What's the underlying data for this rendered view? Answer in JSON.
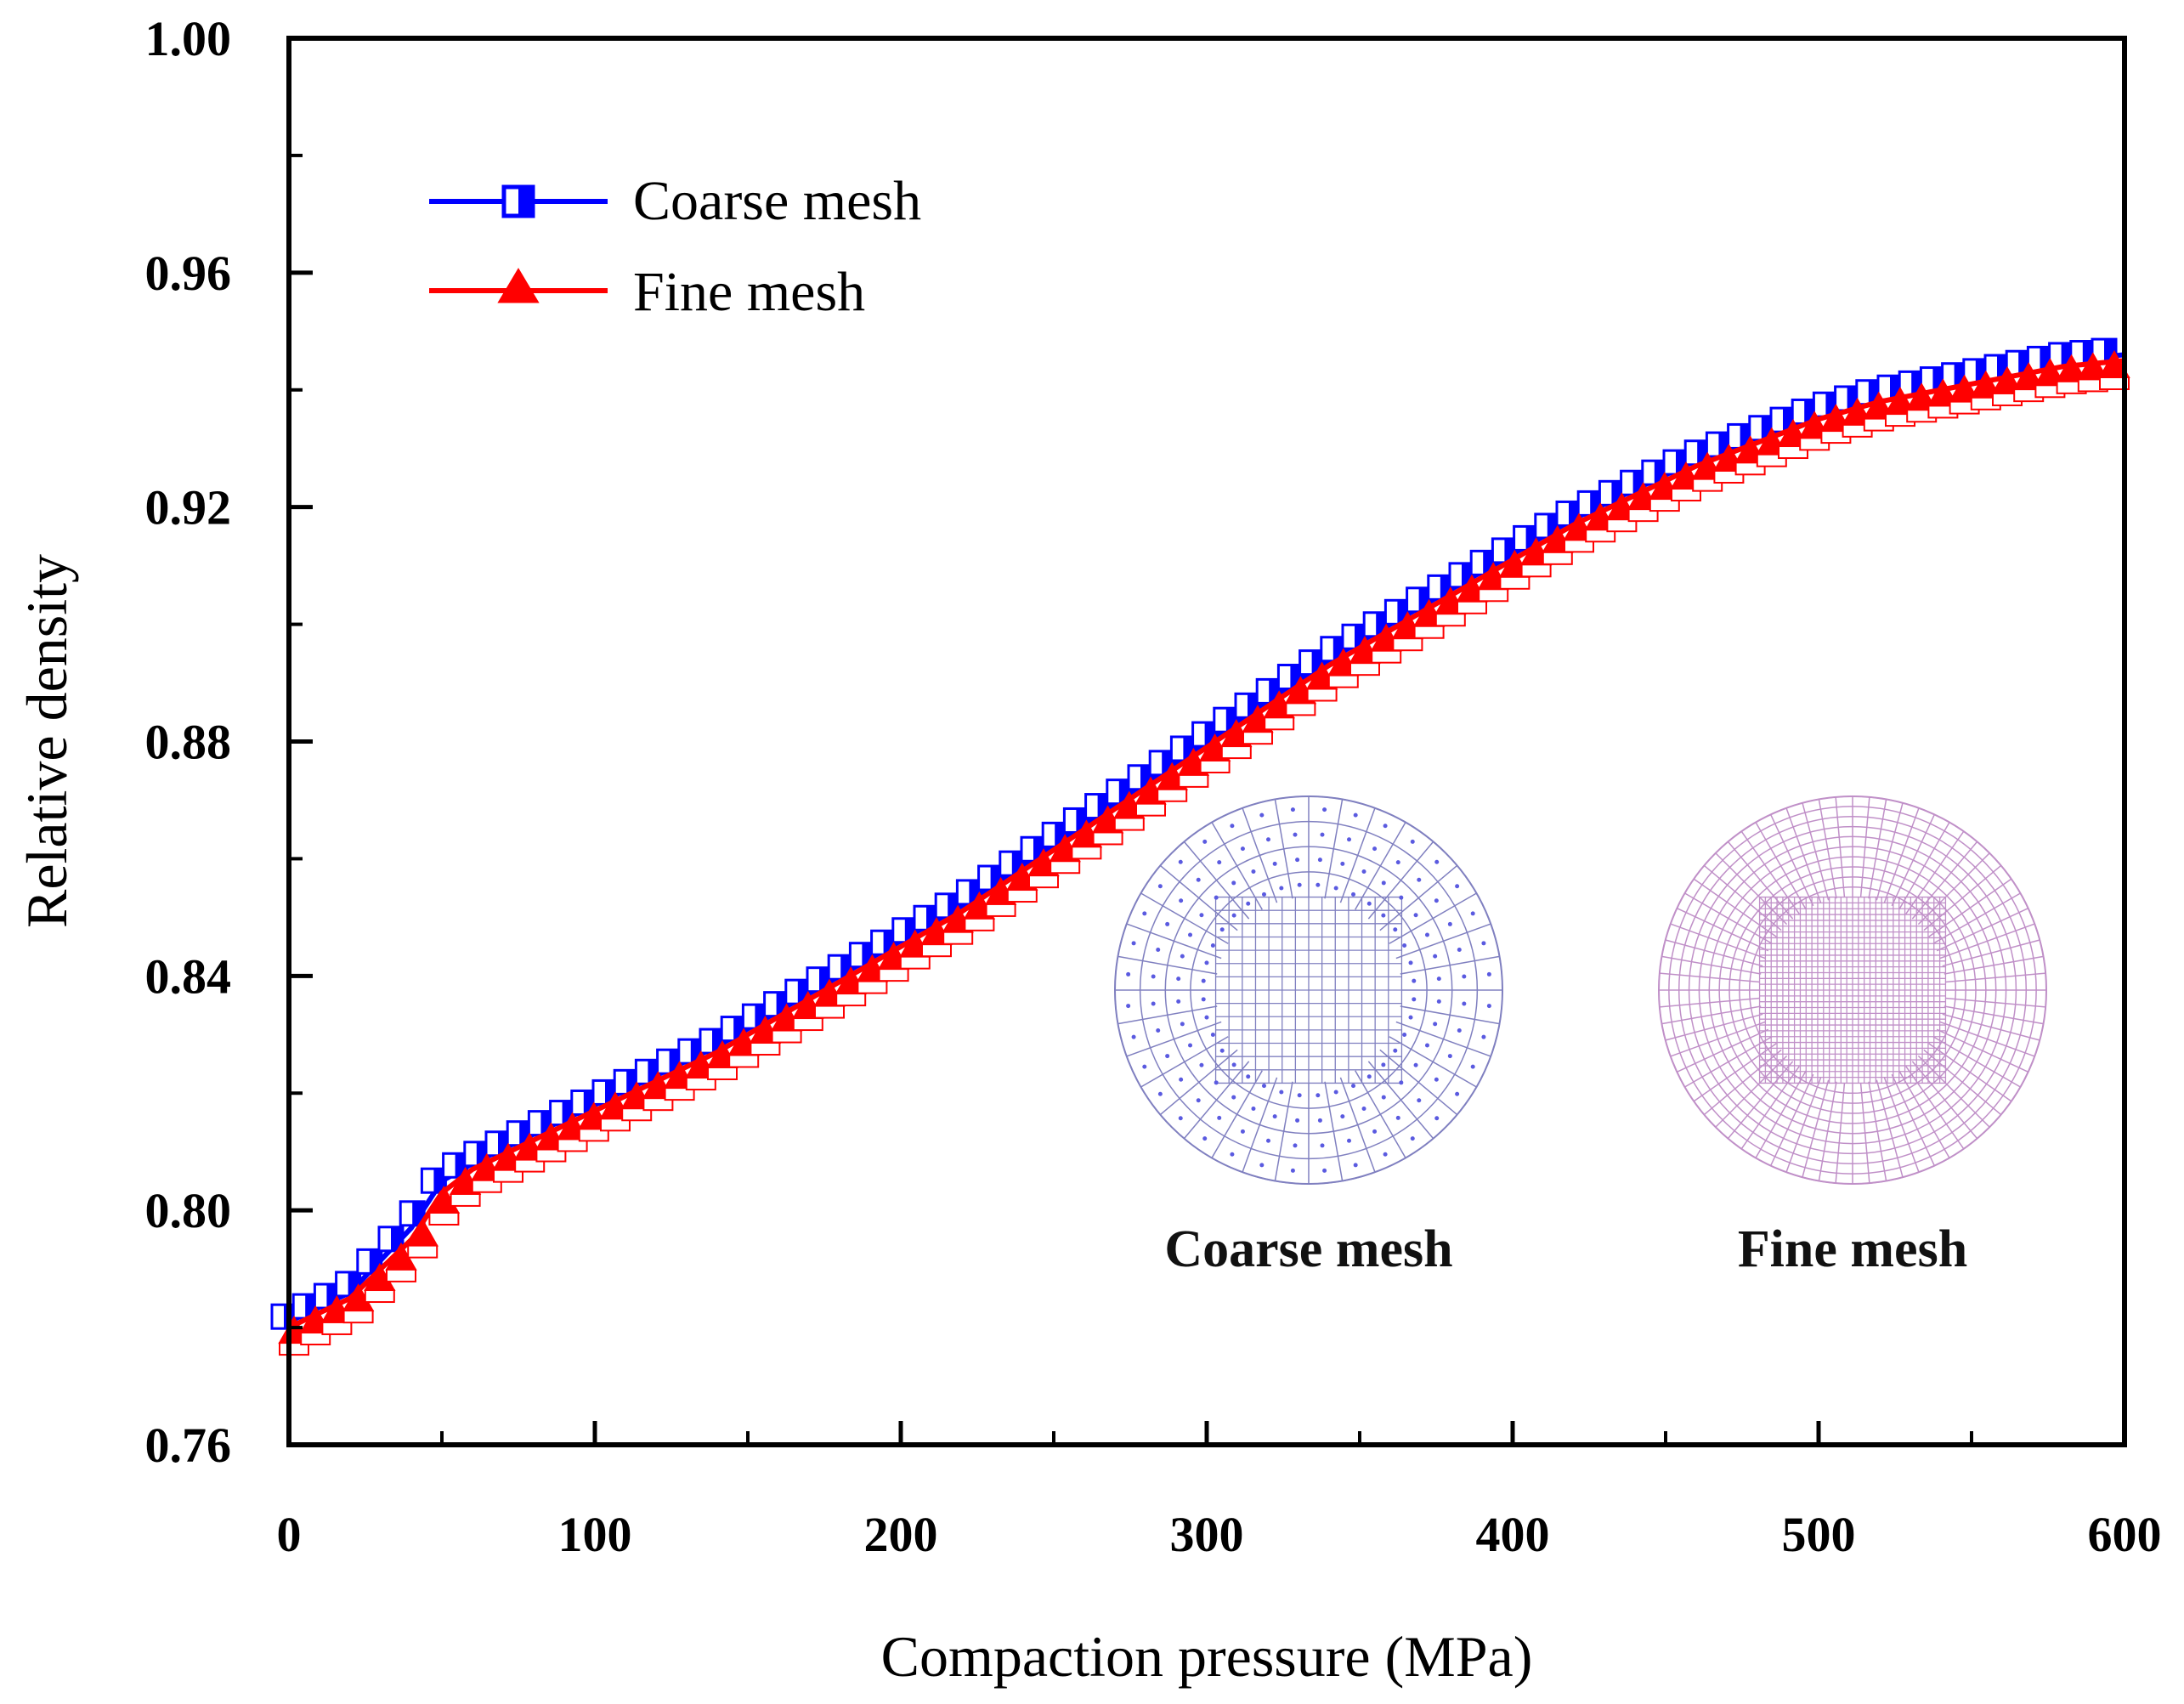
{
  "chart_data": {
    "type": "line",
    "title": "",
    "xlabel": "Compaction pressure (MPa)",
    "ylabel": "Relative density",
    "xlim": [
      0,
      600
    ],
    "ylim": [
      0.76,
      1.0
    ],
    "xticks": [
      0,
      100,
      200,
      300,
      400,
      500,
      600
    ],
    "xtick_labels": [
      "0",
      "100",
      "200",
      "300",
      "400",
      "500",
      "600"
    ],
    "yticks": [
      0.76,
      0.8,
      0.84,
      0.88,
      0.92,
      0.96,
      1.0
    ],
    "ytick_labels": [
      "0.76",
      "0.80",
      "0.84",
      "0.88",
      "0.92",
      "0.96",
      "1.00"
    ],
    "grid": false,
    "legend_position": "top-left",
    "x": [
      0,
      20,
      40,
      50,
      60,
      80,
      100,
      120,
      140,
      160,
      180,
      200,
      220,
      240,
      260,
      280,
      300,
      320,
      340,
      360,
      380,
      400,
      420,
      440,
      460,
      480,
      500,
      520,
      540,
      560,
      580,
      600
    ],
    "series": [
      {
        "name": "Coarse mesh",
        "color": "#0000ff",
        "marker": "half-filled-square",
        "values": [
          0.781,
          0.786,
          0.797,
          0.805,
          0.808,
          0.813,
          0.818,
          0.823,
          0.828,
          0.834,
          0.84,
          0.846,
          0.852,
          0.859,
          0.866,
          0.873,
          0.88,
          0.887,
          0.894,
          0.9,
          0.906,
          0.912,
          0.918,
          0.923,
          0.928,
          0.932,
          0.936,
          0.939,
          0.941,
          0.943,
          0.945,
          0.946
        ]
      },
      {
        "name": "Fine mesh",
        "color": "#ff0000",
        "marker": "half-filled-triangle",
        "values": [
          0.78,
          0.785,
          0.795,
          0.803,
          0.807,
          0.812,
          0.817,
          0.822,
          0.827,
          0.833,
          0.839,
          0.845,
          0.851,
          0.858,
          0.865,
          0.872,
          0.879,
          0.886,
          0.893,
          0.899,
          0.905,
          0.911,
          0.917,
          0.922,
          0.927,
          0.931,
          0.935,
          0.938,
          0.94,
          0.942,
          0.944,
          0.945
        ]
      }
    ],
    "annotations": {
      "inset_coarse_label": "Coarse mesh",
      "inset_fine_label": "Fine mesh",
      "inset_coarse_color": "#8080c0",
      "inset_fine_color": "#c090c8"
    }
  }
}
